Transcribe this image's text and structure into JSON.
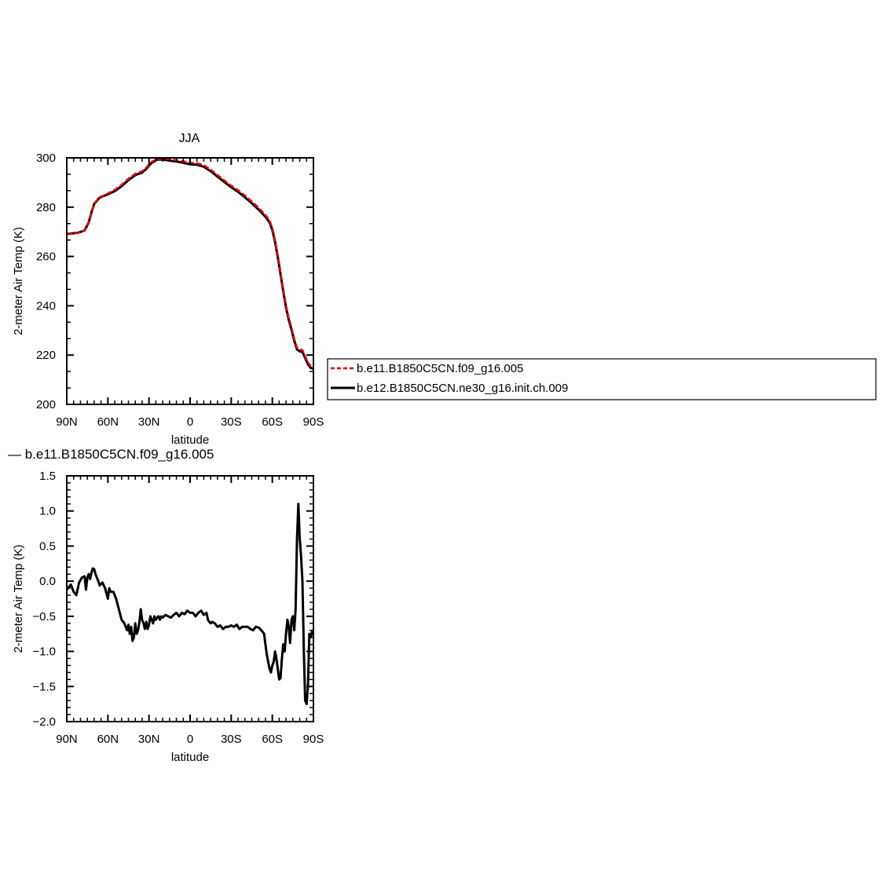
{
  "chart_data": [
    {
      "type": "line",
      "title": "JJA",
      "xlabel": "latitude",
      "ylabel": "2-meter Air Temp (K)",
      "xlim": [
        90,
        -90
      ],
      "ylim": [
        200,
        300
      ],
      "x_ticks": [
        {
          "v": 90,
          "label": "90N"
        },
        {
          "v": 60,
          "label": "60N"
        },
        {
          "v": 30,
          "label": "30N"
        },
        {
          "v": 0,
          "label": "0"
        },
        {
          "v": -30,
          "label": "30S"
        },
        {
          "v": -60,
          "label": "60S"
        },
        {
          "v": -90,
          "label": "90S"
        }
      ],
      "y_ticks": [
        {
          "v": 300,
          "label": "300"
        },
        {
          "v": 280,
          "label": "280"
        },
        {
          "v": 260,
          "label": "260"
        },
        {
          "v": 240,
          "label": "240"
        },
        {
          "v": 220,
          "label": "220"
        },
        {
          "v": 200,
          "label": "200"
        }
      ],
      "legend": "right",
      "series": [
        {
          "name": "b.e11.B1850C5CN.f09_g16.005",
          "color": "#e00000",
          "dash": "dashed",
          "x": [
            90,
            82,
            77,
            74,
            72,
            70,
            66,
            60,
            55,
            50,
            45,
            40,
            35,
            32,
            30,
            28,
            24,
            20,
            15,
            10,
            5,
            0,
            -5,
            -10,
            -15,
            -20,
            -25,
            -30,
            -35,
            -40,
            -45,
            -50,
            -55,
            -58,
            -60,
            -62,
            -64,
            -66,
            -68,
            -70,
            -72,
            -74,
            -76,
            -78,
            -80,
            -82,
            -84,
            -86,
            -88,
            -90
          ],
          "y": [
            269.0,
            269.5,
            270.5,
            274.0,
            278.0,
            281.5,
            284.0,
            285.5,
            287.0,
            289.0,
            291.5,
            293.5,
            294.5,
            296.0,
            297.3,
            298.4,
            299.5,
            299.7,
            299.4,
            299.0,
            298.6,
            298.0,
            297.8,
            297.0,
            295.2,
            293.0,
            290.8,
            288.7,
            286.8,
            284.7,
            282.3,
            279.7,
            276.8,
            274.5,
            271.5,
            266.5,
            260.5,
            253.5,
            246.5,
            240.0,
            235.0,
            231.0,
            226.5,
            223.0,
            222.2,
            222.0,
            219.5,
            217.0,
            215.5,
            215.2
          ]
        },
        {
          "name": "b.e12.B1850C5CN.ne30_g16.init.ch.009",
          "color": "#000000",
          "dash": "solid",
          "x": [
            90,
            82,
            77,
            74,
            72,
            70,
            66,
            60,
            55,
            50,
            45,
            40,
            35,
            32,
            30,
            28,
            24,
            20,
            15,
            10,
            5,
            0,
            -5,
            -10,
            -15,
            -20,
            -25,
            -30,
            -35,
            -40,
            -45,
            -50,
            -55,
            -58,
            -60,
            -62,
            -64,
            -66,
            -68,
            -70,
            -72,
            -74,
            -76,
            -78,
            -80,
            -82,
            -84,
            -86,
            -88,
            -90
          ],
          "y": [
            269.1,
            269.6,
            270.5,
            273.8,
            277.8,
            281.3,
            283.9,
            285.2,
            286.5,
            288.5,
            291.0,
            293.0,
            294.0,
            295.5,
            296.8,
            298.0,
            299.3,
            299.3,
            298.9,
            298.5,
            298.0,
            297.4,
            297.2,
            296.4,
            294.6,
            292.4,
            290.2,
            288.1,
            286.2,
            284.0,
            281.6,
            279.0,
            276.1,
            273.8,
            270.8,
            265.8,
            259.8,
            252.8,
            245.8,
            239.3,
            234.3,
            230.3,
            225.8,
            222.3,
            221.5,
            221.3,
            218.8,
            216.3,
            214.8,
            214.5
          ]
        }
      ]
    },
    {
      "type": "line",
      "title": "— b.e11.B1850C5CN.f09_g16.005",
      "xlabel": "latitude",
      "ylabel": "2-meter Air Temp (K)",
      "xlim": [
        90,
        -90
      ],
      "ylim": [
        -2.0,
        1.5
      ],
      "x_ticks": [
        {
          "v": 90,
          "label": "90N"
        },
        {
          "v": 60,
          "label": "60N"
        },
        {
          "v": 30,
          "label": "30N"
        },
        {
          "v": 0,
          "label": "0"
        },
        {
          "v": -30,
          "label": "30S"
        },
        {
          "v": -60,
          "label": "60S"
        },
        {
          "v": -90,
          "label": "90S"
        }
      ],
      "y_ticks": [
        {
          "v": 1.5,
          "label": "1.5"
        },
        {
          "v": 1.0,
          "label": "1.0"
        },
        {
          "v": 0.5,
          "label": "0.5"
        },
        {
          "v": 0.0,
          "label": "0.0"
        },
        {
          "v": -0.5,
          "label": "−0.5"
        },
        {
          "v": -1.0,
          "label": "−1.0"
        },
        {
          "v": -1.5,
          "label": "−1.5"
        },
        {
          "v": -2.0,
          "label": "−2.0"
        }
      ],
      "series": [
        {
          "color": "#000000",
          "x": [
            90,
            87,
            85,
            83,
            81,
            79,
            77,
            76,
            75,
            74,
            73,
            72,
            71,
            70,
            69,
            68,
            67,
            66,
            64,
            62,
            60,
            59,
            58,
            56,
            54,
            52,
            50,
            48,
            46,
            45,
            44,
            43,
            42,
            41,
            40,
            39,
            38,
            37,
            36,
            35,
            34,
            33,
            32,
            31,
            30,
            29,
            28,
            27,
            26,
            25,
            24,
            23,
            22,
            21,
            20,
            18,
            16,
            14,
            12,
            10,
            8,
            6,
            4,
            2,
            0,
            -2,
            -4,
            -6,
            -8,
            -10,
            -12,
            -13,
            -14,
            -15,
            -16,
            -18,
            -20,
            -22,
            -24,
            -26,
            -28,
            -30,
            -32,
            -34,
            -36,
            -38,
            -40,
            -42,
            -44,
            -46,
            -48,
            -50,
            -52,
            -54,
            -55,
            -56,
            -57,
            -58,
            -59,
            -60,
            -61,
            -62,
            -63,
            -64,
            -65,
            -66,
            -67,
            -68,
            -69,
            -70,
            -71,
            -72,
            -73,
            -74,
            -75,
            -76,
            -77,
            -78,
            -79,
            -80,
            -81,
            -82,
            -83,
            -84,
            -85,
            -86,
            -87,
            -88,
            -89,
            -90
          ],
          "y": [
            -0.12,
            -0.05,
            -0.15,
            -0.2,
            -0.02,
            0.05,
            0.07,
            -0.12,
            0.05,
            0.1,
            0.03,
            0.12,
            0.18,
            0.17,
            0.1,
            0.05,
            0.0,
            -0.06,
            -0.02,
            -0.1,
            -0.25,
            -0.1,
            -0.15,
            -0.15,
            -0.25,
            -0.4,
            -0.55,
            -0.6,
            -0.7,
            -0.62,
            -0.75,
            -0.65,
            -0.85,
            -0.8,
            -0.6,
            -0.75,
            -0.7,
            -0.58,
            -0.4,
            -0.55,
            -0.6,
            -0.68,
            -0.58,
            -0.68,
            -0.62,
            -0.5,
            -0.55,
            -0.6,
            -0.5,
            -0.55,
            -0.52,
            -0.5,
            -0.55,
            -0.5,
            -0.52,
            -0.48,
            -0.5,
            -0.52,
            -0.48,
            -0.45,
            -0.5,
            -0.45,
            -0.47,
            -0.42,
            -0.45,
            -0.45,
            -0.5,
            -0.45,
            -0.42,
            -0.48,
            -0.45,
            -0.55,
            -0.58,
            -0.6,
            -0.58,
            -0.6,
            -0.65,
            -0.63,
            -0.68,
            -0.65,
            -0.65,
            -0.63,
            -0.65,
            -0.62,
            -0.68,
            -0.65,
            -0.65,
            -0.65,
            -0.68,
            -0.7,
            -0.65,
            -0.66,
            -0.7,
            -0.75,
            -0.9,
            -1.05,
            -1.15,
            -1.25,
            -1.3,
            -1.2,
            -1.15,
            -1.0,
            -1.1,
            -1.25,
            -1.4,
            -1.38,
            -1.1,
            -0.9,
            -1.0,
            -0.75,
            -0.55,
            -0.65,
            -0.88,
            -0.55,
            -0.5,
            -0.7,
            -0.4,
            0.6,
            1.1,
            0.6,
            0.35,
            0.0,
            -1.0,
            -1.7,
            -1.75,
            -1.5,
            -0.75,
            -0.8,
            -0.72,
            -0.7
          ]
        }
      ]
    }
  ]
}
